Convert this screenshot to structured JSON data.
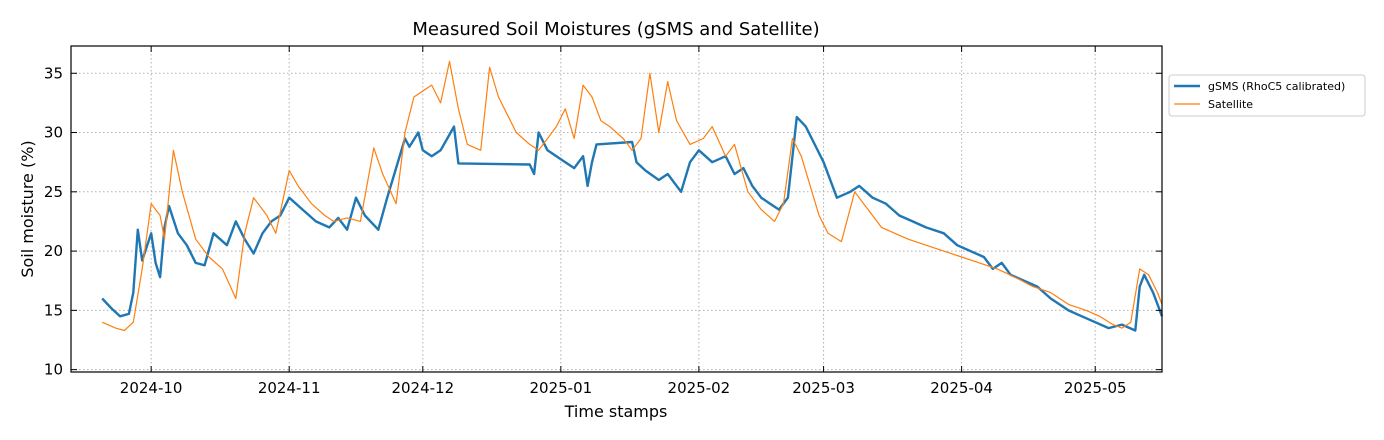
{
  "chart_data": {
    "type": "line",
    "title": "Measured Soil Moistures (gSMS and Satellite)",
    "xlabel": "Time stamps",
    "ylabel": "Soil moisture (%)",
    "xlim": [
      "2024-09-13",
      "2025-05-16"
    ],
    "ylim": [
      9.8,
      37.3
    ],
    "x_ticks": [
      {
        "date": "2024-10-01",
        "label": "2024-10"
      },
      {
        "date": "2024-11-01",
        "label": "2024-11"
      },
      {
        "date": "2024-12-01",
        "label": "2024-12"
      },
      {
        "date": "2025-01-01",
        "label": "2025-01"
      },
      {
        "date": "2025-02-01",
        "label": "2025-02"
      },
      {
        "date": "2025-03-01",
        "label": "2025-03"
      },
      {
        "date": "2025-04-01",
        "label": "2025-04"
      },
      {
        "date": "2025-05-01",
        "label": "2025-05"
      }
    ],
    "y_ticks": [
      10,
      15,
      20,
      25,
      30,
      35
    ],
    "grid": true,
    "legend_position": "outside-right-top",
    "series": [
      {
        "name": "gSMS (RhoC5 calibrated)",
        "color": "#1f77b4",
        "points": [
          [
            "2024-09-20",
            16.0
          ],
          [
            "2024-09-22",
            15.2
          ],
          [
            "2024-09-24",
            14.5
          ],
          [
            "2024-09-26",
            14.7
          ],
          [
            "2024-09-27",
            16.5
          ],
          [
            "2024-09-28",
            21.8
          ],
          [
            "2024-09-29",
            19.2
          ],
          [
            "2024-10-01",
            21.5
          ],
          [
            "2024-10-02",
            19.0
          ],
          [
            "2024-10-03",
            17.8
          ],
          [
            "2024-10-04",
            22.0
          ],
          [
            "2024-10-05",
            23.8
          ],
          [
            "2024-10-07",
            21.5
          ],
          [
            "2024-10-09",
            20.5
          ],
          [
            "2024-10-11",
            19.0
          ],
          [
            "2024-10-13",
            18.8
          ],
          [
            "2024-10-15",
            21.5
          ],
          [
            "2024-10-18",
            20.5
          ],
          [
            "2024-10-20",
            22.5
          ],
          [
            "2024-10-22",
            21.0
          ],
          [
            "2024-10-24",
            19.8
          ],
          [
            "2024-10-26",
            21.5
          ],
          [
            "2024-10-28",
            22.5
          ],
          [
            "2024-10-30",
            23.0
          ],
          [
            "2024-11-01",
            24.5
          ],
          [
            "2024-11-04",
            23.5
          ],
          [
            "2024-11-07",
            22.5
          ],
          [
            "2024-11-10",
            22.0
          ],
          [
            "2024-11-12",
            22.8
          ],
          [
            "2024-11-14",
            21.8
          ],
          [
            "2024-11-16",
            24.5
          ],
          [
            "2024-11-18",
            23.0
          ],
          [
            "2024-11-21",
            21.8
          ],
          [
            "2024-11-23",
            24.5
          ],
          [
            "2024-11-25",
            27.0
          ],
          [
            "2024-11-27",
            29.5
          ],
          [
            "2024-11-28",
            28.8
          ],
          [
            "2024-11-30",
            30.0
          ],
          [
            "2024-12-01",
            28.5
          ],
          [
            "2024-12-03",
            28.0
          ],
          [
            "2024-12-05",
            28.5
          ],
          [
            "2024-12-08",
            30.5
          ],
          [
            "2024-12-09",
            27.4
          ],
          [
            "2024-12-25",
            27.3
          ],
          [
            "2024-12-26",
            26.5
          ],
          [
            "2024-12-27",
            30.0
          ],
          [
            "2024-12-29",
            28.5
          ],
          [
            "2024-12-31",
            28.0
          ],
          [
            "2025-01-02",
            27.5
          ],
          [
            "2025-01-04",
            27.0
          ],
          [
            "2025-01-06",
            28.0
          ],
          [
            "2025-01-07",
            25.5
          ],
          [
            "2025-01-08",
            27.5
          ],
          [
            "2025-01-09",
            29.0
          ],
          [
            "2025-01-17",
            29.2
          ],
          [
            "2025-01-18",
            27.5
          ],
          [
            "2025-01-20",
            26.8
          ],
          [
            "2025-01-23",
            26.0
          ],
          [
            "2025-01-25",
            26.5
          ],
          [
            "2025-01-28",
            25.0
          ],
          [
            "2025-01-30",
            27.5
          ],
          [
            "2025-02-01",
            28.5
          ],
          [
            "2025-02-04",
            27.5
          ],
          [
            "2025-02-07",
            28.0
          ],
          [
            "2025-02-09",
            26.5
          ],
          [
            "2025-02-11",
            27.0
          ],
          [
            "2025-02-13",
            25.5
          ],
          [
            "2025-02-15",
            24.5
          ],
          [
            "2025-02-17",
            24.0
          ],
          [
            "2025-02-19",
            23.5
          ],
          [
            "2025-02-21",
            24.5
          ],
          [
            "2025-02-23",
            31.3
          ],
          [
            "2025-02-25",
            30.5
          ],
          [
            "2025-02-27",
            29.0
          ],
          [
            "2025-03-01",
            27.5
          ],
          [
            "2025-03-04",
            24.5
          ],
          [
            "2025-03-07",
            25.0
          ],
          [
            "2025-03-09",
            25.5
          ],
          [
            "2025-03-12",
            24.5
          ],
          [
            "2025-03-15",
            24.0
          ],
          [
            "2025-03-18",
            23.0
          ],
          [
            "2025-03-21",
            22.5
          ],
          [
            "2025-03-24",
            22.0
          ],
          [
            "2025-03-28",
            21.5
          ],
          [
            "2025-03-31",
            20.5
          ],
          [
            "2025-04-03",
            20.0
          ],
          [
            "2025-04-06",
            19.5
          ],
          [
            "2025-04-08",
            18.5
          ],
          [
            "2025-04-10",
            19.0
          ],
          [
            "2025-04-12",
            18.0
          ],
          [
            "2025-04-15",
            17.5
          ],
          [
            "2025-04-18",
            17.0
          ],
          [
            "2025-04-21",
            16.0
          ],
          [
            "2025-04-25",
            15.0
          ],
          [
            "2025-04-28",
            14.5
          ],
          [
            "2025-05-01",
            14.0
          ],
          [
            "2025-05-04",
            13.5
          ],
          [
            "2025-05-07",
            13.8
          ],
          [
            "2025-05-10",
            13.3
          ],
          [
            "2025-05-11",
            17.0
          ],
          [
            "2025-05-12",
            18.0
          ],
          [
            "2025-05-14",
            16.5
          ],
          [
            "2025-05-16",
            14.5
          ]
        ]
      },
      {
        "name": "Satellite",
        "color": "#ff7f0e",
        "points": [
          [
            "2024-09-20",
            14.0
          ],
          [
            "2024-09-23",
            13.5
          ],
          [
            "2024-09-25",
            13.3
          ],
          [
            "2024-09-27",
            14.0
          ],
          [
            "2024-09-29",
            18.5
          ],
          [
            "2024-10-01",
            24.0
          ],
          [
            "2024-10-03",
            23.0
          ],
          [
            "2024-10-04",
            21.0
          ],
          [
            "2024-10-06",
            28.5
          ],
          [
            "2024-10-08",
            25.0
          ],
          [
            "2024-10-11",
            21.0
          ],
          [
            "2024-10-14",
            19.5
          ],
          [
            "2024-10-17",
            18.5
          ],
          [
            "2024-10-20",
            16.0
          ],
          [
            "2024-10-22",
            21.5
          ],
          [
            "2024-10-24",
            24.5
          ],
          [
            "2024-10-27",
            23.0
          ],
          [
            "2024-10-29",
            21.5
          ],
          [
            "2024-11-01",
            26.8
          ],
          [
            "2024-11-03",
            25.5
          ],
          [
            "2024-11-06",
            24.0
          ],
          [
            "2024-11-09",
            23.0
          ],
          [
            "2024-11-11",
            22.5
          ],
          [
            "2024-11-14",
            22.8
          ],
          [
            "2024-11-17",
            22.5
          ],
          [
            "2024-11-20",
            28.7
          ],
          [
            "2024-11-22",
            26.5
          ],
          [
            "2024-11-25",
            24.0
          ],
          [
            "2024-11-27",
            30.0
          ],
          [
            "2024-11-29",
            33.0
          ],
          [
            "2024-12-01",
            33.5
          ],
          [
            "2024-12-03",
            34.0
          ],
          [
            "2024-12-05",
            32.5
          ],
          [
            "2024-12-07",
            36.0
          ],
          [
            "2024-12-09",
            32.0
          ],
          [
            "2024-12-11",
            29.0
          ],
          [
            "2024-12-14",
            28.5
          ],
          [
            "2024-12-16",
            35.5
          ],
          [
            "2024-12-18",
            33.0
          ],
          [
            "2024-12-20",
            31.5
          ],
          [
            "2024-12-22",
            30.0
          ],
          [
            "2024-12-25",
            29.0
          ],
          [
            "2024-12-27",
            28.5
          ],
          [
            "2024-12-29",
            29.5
          ],
          [
            "2024-12-31",
            30.5
          ],
          [
            "2025-01-02",
            32.0
          ],
          [
            "2025-01-04",
            29.5
          ],
          [
            "2025-01-06",
            34.0
          ],
          [
            "2025-01-08",
            33.0
          ],
          [
            "2025-01-10",
            31.0
          ],
          [
            "2025-01-12",
            30.5
          ],
          [
            "2025-01-15",
            29.5
          ],
          [
            "2025-01-17",
            28.5
          ],
          [
            "2025-01-19",
            29.5
          ],
          [
            "2025-01-21",
            35.0
          ],
          [
            "2025-01-23",
            30.0
          ],
          [
            "2025-01-25",
            34.3
          ],
          [
            "2025-01-27",
            31.0
          ],
          [
            "2025-01-30",
            29.0
          ],
          [
            "2025-02-02",
            29.5
          ],
          [
            "2025-02-04",
            30.5
          ],
          [
            "2025-02-07",
            28.0
          ],
          [
            "2025-02-09",
            29.0
          ],
          [
            "2025-02-12",
            25.0
          ],
          [
            "2025-02-15",
            23.5
          ],
          [
            "2025-02-18",
            22.5
          ],
          [
            "2025-02-20",
            24.0
          ],
          [
            "2025-02-22",
            29.5
          ],
          [
            "2025-02-24",
            28.0
          ],
          [
            "2025-02-26",
            25.5
          ],
          [
            "2025-02-28",
            23.0
          ],
          [
            "2025-03-02",
            21.5
          ],
          [
            "2025-03-05",
            20.8
          ],
          [
            "2025-03-08",
            25.0
          ],
          [
            "2025-03-11",
            23.5
          ],
          [
            "2025-03-14",
            22.0
          ],
          [
            "2025-03-17",
            21.5
          ],
          [
            "2025-03-20",
            21.0
          ],
          [
            "2025-03-24",
            20.5
          ],
          [
            "2025-03-28",
            20.0
          ],
          [
            "2025-04-01",
            19.5
          ],
          [
            "2025-04-05",
            19.0
          ],
          [
            "2025-04-09",
            18.5
          ],
          [
            "2025-04-13",
            17.8
          ],
          [
            "2025-04-17",
            17.0
          ],
          [
            "2025-04-21",
            16.5
          ],
          [
            "2025-04-25",
            15.5
          ],
          [
            "2025-04-29",
            15.0
          ],
          [
            "2025-05-02",
            14.5
          ],
          [
            "2025-05-05",
            13.8
          ],
          [
            "2025-05-07",
            13.5
          ],
          [
            "2025-05-09",
            14.0
          ],
          [
            "2025-05-11",
            18.5
          ],
          [
            "2025-05-13",
            18.0
          ],
          [
            "2025-05-15",
            16.5
          ],
          [
            "2025-05-16",
            15.5
          ]
        ]
      }
    ]
  }
}
